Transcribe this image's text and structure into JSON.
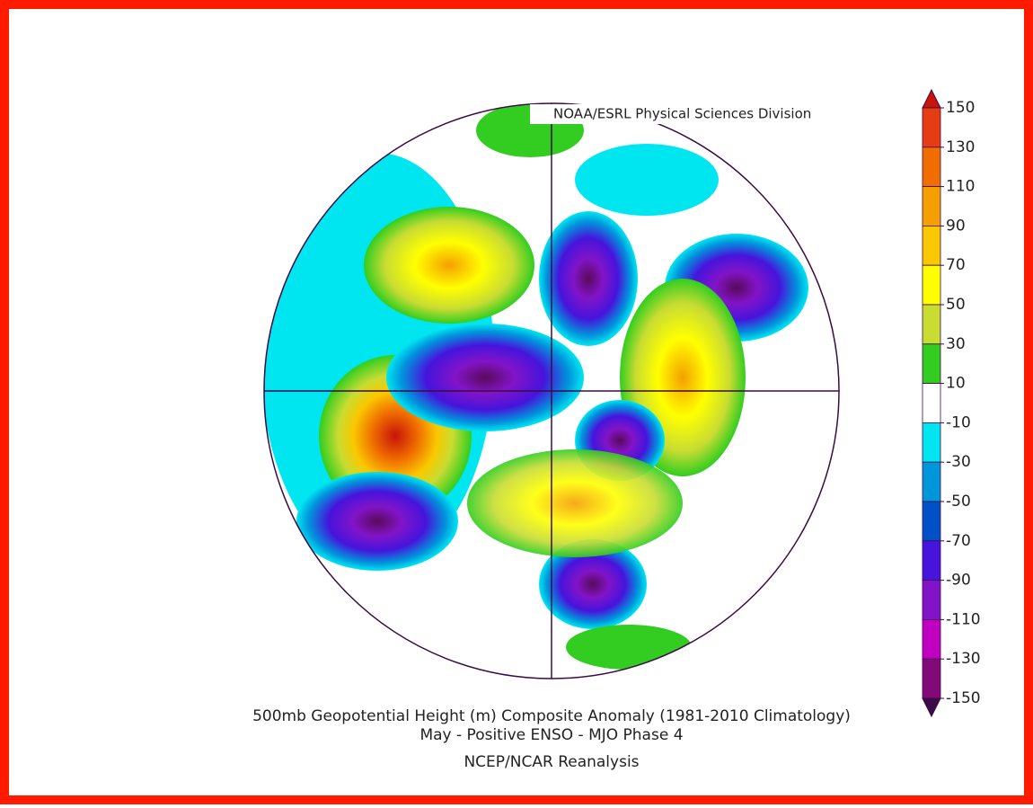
{
  "credit": "NOAA/ESRL Physical Sciences Division",
  "colorbar": {
    "ticks": [
      150,
      130,
      110,
      90,
      70,
      50,
      30,
      10,
      -10,
      -30,
      -50,
      -70,
      -90,
      -110,
      -130,
      -150
    ],
    "colors": [
      "#c8140a",
      "#e63c14",
      "#f06e00",
      "#f5a000",
      "#fac800",
      "#ffff00",
      "#c8dc32",
      "#32cd20",
      "#ffffff",
      "#00e6f0",
      "#0096dc",
      "#0050c8",
      "#4614dc",
      "#8214c8",
      "#c000c0",
      "#820a78",
      "#3c0a46"
    ]
  },
  "title": {
    "line1": "500mb Geopotential Height (m) Composite Anomaly (1981-2010 Climatology)",
    "line2": "May - Positive ENSO - MJO Phase 4",
    "line3": "NCEP/NCAR Reanalysis"
  }
}
